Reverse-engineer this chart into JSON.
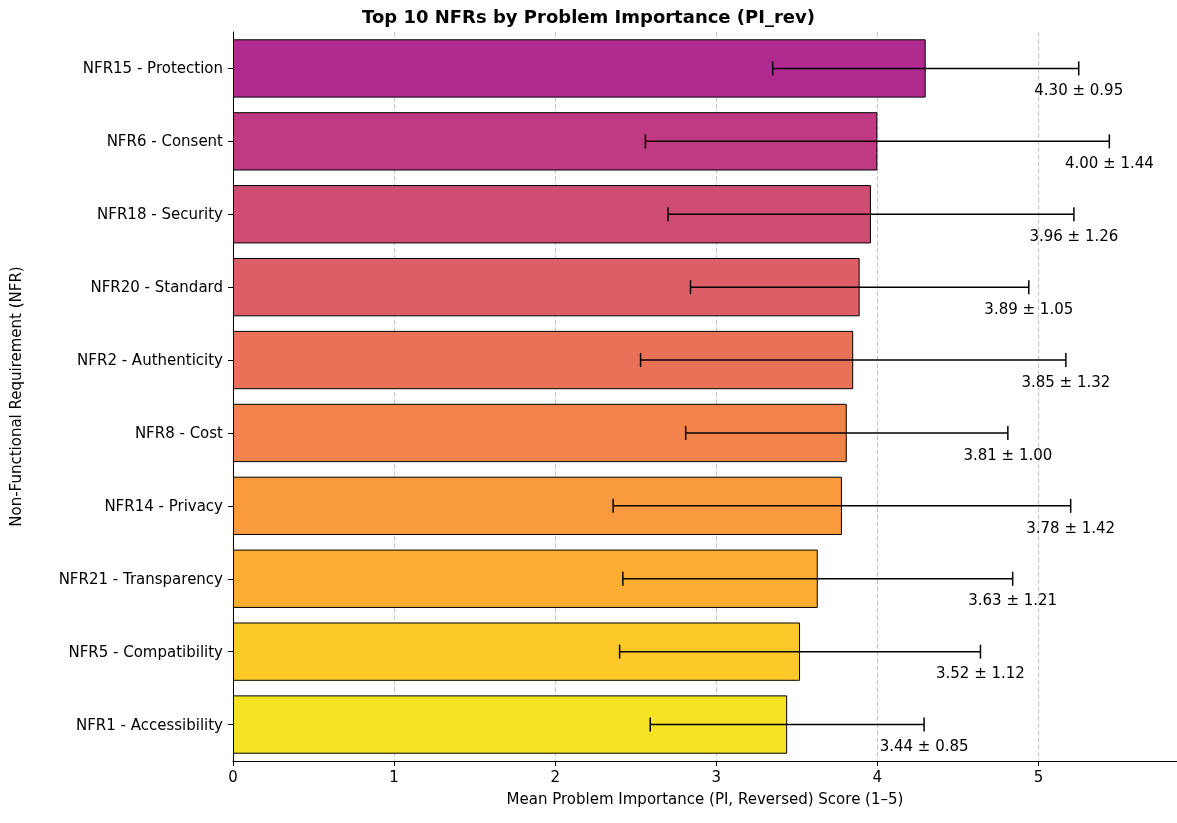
{
  "chart_data": {
    "type": "bar",
    "orientation": "horizontal",
    "title": "Top 10 NFRs by Problem Importance (PI_rev)",
    "xlabel": "Mean Problem Importance (PI, Reversed) Score (1–5)",
    "ylabel": "Non-Functional Requirement (NFR)",
    "categories": [
      "NFR15 - Protection",
      "NFR6 - Consent",
      "NFR18 - Security",
      "NFR20 - Standard",
      "NFR2 - Authenticity",
      "NFR8 - Cost",
      "NFR14 - Privacy",
      "NFR21 - Transparency",
      "NFR5 - Compatibility",
      "NFR1 - Accessibility"
    ],
    "values": [
      4.3,
      4.0,
      3.96,
      3.89,
      3.85,
      3.81,
      3.78,
      3.63,
      3.52,
      3.44
    ],
    "errors": [
      0.95,
      1.44,
      1.26,
      1.05,
      1.32,
      1.0,
      1.42,
      1.21,
      1.12,
      0.85
    ],
    "annotations": [
      {
        "text": "4.30 ± 0.95",
        "x": 5.25,
        "y": "NFR15 - Protection"
      },
      {
        "text": "4.00 ± 1.44",
        "x": 5.44,
        "y": "NFR6 - Consent"
      },
      {
        "text": "3.96 ± 1.26",
        "x": 5.22,
        "y": "NFR18 - Security"
      },
      {
        "text": "3.89 ± 1.05",
        "x": 4.94,
        "y": "NFR20 - Standard"
      },
      {
        "text": "3.85 ± 1.32",
        "x": 5.17,
        "y": "NFR2 - Authenticity"
      },
      {
        "text": "3.81 ± 1.00",
        "x": 4.81,
        "y": "NFR8 - Cost"
      },
      {
        "text": "3.78 ± 1.42",
        "x": 5.2,
        "y": "NFR14 - Privacy"
      },
      {
        "text": "3.63 ± 1.21",
        "x": 4.84,
        "y": "NFR21 - Transparency"
      },
      {
        "text": "3.52 ± 1.12",
        "x": 4.64,
        "y": "NFR5 - Compatibility"
      },
      {
        "text": "3.44 ± 0.85",
        "x": 4.29,
        "y": "NFR1 - Accessibility"
      }
    ],
    "colors": [
      "#b12a90",
      "#c03a83",
      "#cf4c74",
      "#dd5e66",
      "#e97158",
      "#f2844b",
      "#f99a3e",
      "#fcae32",
      "#fcc929",
      "#f5e326"
    ],
    "xlim": [
      0,
      5.86
    ],
    "xticks": [
      0,
      1,
      2,
      3,
      4,
      5
    ],
    "grid": "x"
  }
}
